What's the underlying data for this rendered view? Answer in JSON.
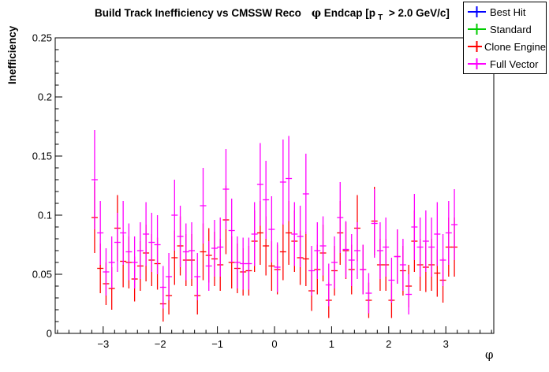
{
  "title": {
    "main": "Build Track Inefficiency vs CMSSW Reco",
    "phi": "φ",
    "cond_pre": " Endcap [p",
    "cond_sub": "T",
    "cond_post": " > 2.0 GeV/c]"
  },
  "chart_data": {
    "type": "scatter",
    "title": "Build Track Inefficiency vs CMSSW Reco  φ Endcap [p_T > 2.0 GeV/c]",
    "xlabel": "φ",
    "ylabel": "Inefficiency",
    "xlim": [
      -3.84,
      3.84
    ],
    "ylim": [
      0,
      0.25
    ],
    "grid": false,
    "x_minor_step": 0.2,
    "y_minor_step": 0.01,
    "x_ticks": [
      {
        "v": -3,
        "label": "−3"
      },
      {
        "v": -2,
        "label": "−2"
      },
      {
        "v": -1,
        "label": "−1"
      },
      {
        "v": 0,
        "label": "0"
      },
      {
        "v": 1,
        "label": "1"
      },
      {
        "v": 2,
        "label": "2"
      },
      {
        "v": 3,
        "label": "3"
      }
    ],
    "y_ticks": [
      {
        "v": 0,
        "label": "0"
      },
      {
        "v": 0.05,
        "label": "0.05"
      },
      {
        "v": 0.1,
        "label": "0.1"
      },
      {
        "v": 0.15,
        "label": "0.15"
      },
      {
        "v": 0.2,
        "label": "0.2"
      },
      {
        "v": 0.25,
        "label": "0.25"
      }
    ],
    "legend_position": "top-right",
    "legend": [
      {
        "label": "Best Hit",
        "color": "#0000ff"
      },
      {
        "label": "Standard",
        "color": "#00cc00"
      },
      {
        "label": "Clone Engine",
        "color": "#ff0000"
      },
      {
        "label": "Full Vector",
        "color": "#ff00ff"
      }
    ],
    "point_format": [
      "phi",
      "inefficiency",
      "error"
    ],
    "series": [
      {
        "name": "Best Hit",
        "color": "#0000ff",
        "points": []
      },
      {
        "name": "Standard",
        "color": "#00cc00",
        "points": []
      },
      {
        "name": "Clone Engine",
        "color": "#ff0000",
        "points": [
          [
            -3.15,
            0.098,
            0.03
          ],
          [
            -3.05,
            0.055,
            0.021
          ],
          [
            -2.95,
            0.042,
            0.018
          ],
          [
            -2.85,
            0.038,
            0.018
          ],
          [
            -2.75,
            0.089,
            0.028
          ],
          [
            -2.65,
            0.061,
            0.022
          ],
          [
            -2.55,
            0.06,
            0.022
          ],
          [
            -2.45,
            0.046,
            0.019
          ],
          [
            -2.35,
            0.057,
            0.021
          ],
          [
            -2.25,
            0.068,
            0.024
          ],
          [
            -2.15,
            0.062,
            0.022
          ],
          [
            -2.05,
            0.059,
            0.022
          ],
          [
            -1.95,
            0.025,
            0.015
          ],
          [
            -1.85,
            0.032,
            0.016
          ],
          [
            -1.75,
            0.064,
            0.023
          ],
          [
            -1.65,
            0.074,
            0.025
          ],
          [
            -1.55,
            0.062,
            0.022
          ],
          [
            -1.45,
            0.062,
            0.022
          ],
          [
            -1.35,
            0.032,
            0.016
          ],
          [
            -1.25,
            0.069,
            0.024
          ],
          [
            -1.15,
            0.066,
            0.023
          ],
          [
            -1.05,
            0.063,
            0.023
          ],
          [
            -0.95,
            0.058,
            0.022
          ],
          [
            -0.85,
            0.096,
            0.029
          ],
          [
            -0.75,
            0.06,
            0.022
          ],
          [
            -0.65,
            0.055,
            0.021
          ],
          [
            -0.55,
            0.052,
            0.02
          ],
          [
            -0.45,
            0.053,
            0.021
          ],
          [
            -0.35,
            0.078,
            0.026
          ],
          [
            -0.25,
            0.085,
            0.027
          ],
          [
            -0.15,
            0.074,
            0.025
          ],
          [
            -0.05,
            0.057,
            0.021
          ],
          [
            0.05,
            0.054,
            0.021
          ],
          [
            0.15,
            0.069,
            0.024
          ],
          [
            0.25,
            0.085,
            0.027
          ],
          [
            0.35,
            0.078,
            0.026
          ],
          [
            0.45,
            0.064,
            0.023
          ],
          [
            0.55,
            0.063,
            0.023
          ],
          [
            0.65,
            0.036,
            0.017
          ],
          [
            0.75,
            0.054,
            0.021
          ],
          [
            0.85,
            0.068,
            0.024
          ],
          [
            0.95,
            0.028,
            0.015
          ],
          [
            1.05,
            0.053,
            0.021
          ],
          [
            1.15,
            0.085,
            0.027
          ],
          [
            1.25,
            0.07,
            0.024
          ],
          [
            1.35,
            0.054,
            0.021
          ],
          [
            1.45,
            0.089,
            0.028
          ],
          [
            1.55,
            0.054,
            0.021
          ],
          [
            1.65,
            0.028,
            0.015
          ],
          [
            1.75,
            0.095,
            0.029
          ],
          [
            1.85,
            0.058,
            0.022
          ],
          [
            1.95,
            0.058,
            0.022
          ],
          [
            2.05,
            0.028,
            0.015
          ],
          [
            2.15,
            0.065,
            0.023
          ],
          [
            2.25,
            0.053,
            0.021
          ],
          [
            2.35,
            0.04,
            0.018
          ],
          [
            2.45,
            0.078,
            0.026
          ],
          [
            2.55,
            0.058,
            0.022
          ],
          [
            2.65,
            0.056,
            0.021
          ],
          [
            2.75,
            0.058,
            0.022
          ],
          [
            2.85,
            0.051,
            0.02
          ],
          [
            2.95,
            0.045,
            0.019
          ],
          [
            3.05,
            0.073,
            0.025
          ],
          [
            3.15,
            0.073,
            0.025
          ]
        ]
      },
      {
        "name": "Full Vector",
        "color": "#ff00ff",
        "points": [
          [
            -3.15,
            0.13,
            0.042
          ],
          [
            -3.05,
            0.085,
            0.027
          ],
          [
            -2.95,
            0.052,
            0.02
          ],
          [
            -2.85,
            0.06,
            0.022
          ],
          [
            -2.75,
            0.077,
            0.025
          ],
          [
            -2.65,
            0.085,
            0.027
          ],
          [
            -2.55,
            0.069,
            0.024
          ],
          [
            -2.45,
            0.06,
            0.022
          ],
          [
            -2.35,
            0.07,
            0.024
          ],
          [
            -2.25,
            0.084,
            0.027
          ],
          [
            -2.15,
            0.077,
            0.025
          ],
          [
            -2.05,
            0.075,
            0.025
          ],
          [
            -1.95,
            0.039,
            0.018
          ],
          [
            -1.85,
            0.048,
            0.02
          ],
          [
            -1.75,
            0.1,
            0.03
          ],
          [
            -1.65,
            0.082,
            0.026
          ],
          [
            -1.55,
            0.069,
            0.024
          ],
          [
            -1.45,
            0.07,
            0.024
          ],
          [
            -1.35,
            0.048,
            0.02
          ],
          [
            -1.25,
            0.108,
            0.032
          ],
          [
            -1.15,
            0.057,
            0.021
          ],
          [
            -1.05,
            0.072,
            0.024
          ],
          [
            -0.95,
            0.073,
            0.025
          ],
          [
            -0.85,
            0.122,
            0.034
          ],
          [
            -0.75,
            0.087,
            0.027
          ],
          [
            -0.65,
            0.06,
            0.022
          ],
          [
            -0.55,
            0.059,
            0.022
          ],
          [
            -0.45,
            0.059,
            0.022
          ],
          [
            -0.35,
            0.084,
            0.027
          ],
          [
            -0.25,
            0.126,
            0.035
          ],
          [
            -0.15,
            0.113,
            0.033
          ],
          [
            -0.05,
            0.088,
            0.028
          ],
          [
            0.05,
            0.056,
            0.021
          ],
          [
            0.15,
            0.128,
            0.036
          ],
          [
            0.25,
            0.131,
            0.036
          ],
          [
            0.35,
            0.084,
            0.027
          ],
          [
            0.45,
            0.082,
            0.026
          ],
          [
            0.55,
            0.118,
            0.034
          ],
          [
            0.65,
            0.053,
            0.021
          ],
          [
            0.75,
            0.07,
            0.024
          ],
          [
            0.85,
            0.074,
            0.025
          ],
          [
            0.95,
            0.041,
            0.018
          ],
          [
            1.05,
            0.06,
            0.022
          ],
          [
            1.15,
            0.098,
            0.03
          ],
          [
            1.25,
            0.071,
            0.024
          ],
          [
            1.35,
            0.062,
            0.022
          ],
          [
            1.45,
            0.07,
            0.024
          ],
          [
            1.55,
            0.054,
            0.021
          ],
          [
            1.65,
            0.034,
            0.017
          ],
          [
            1.75,
            0.093,
            0.029
          ],
          [
            1.85,
            0.07,
            0.024
          ],
          [
            1.95,
            0.073,
            0.025
          ],
          [
            2.05,
            0.045,
            0.019
          ],
          [
            2.15,
            0.065,
            0.023
          ],
          [
            2.25,
            0.058,
            0.022
          ],
          [
            2.35,
            0.033,
            0.017
          ],
          [
            2.45,
            0.09,
            0.028
          ],
          [
            2.55,
            0.073,
            0.025
          ],
          [
            2.65,
            0.078,
            0.026
          ],
          [
            2.75,
            0.073,
            0.025
          ],
          [
            2.85,
            0.084,
            0.027
          ],
          [
            2.95,
            0.062,
            0.022
          ],
          [
            3.05,
            0.085,
            0.027
          ],
          [
            3.15,
            0.092,
            0.03
          ]
        ]
      }
    ]
  }
}
